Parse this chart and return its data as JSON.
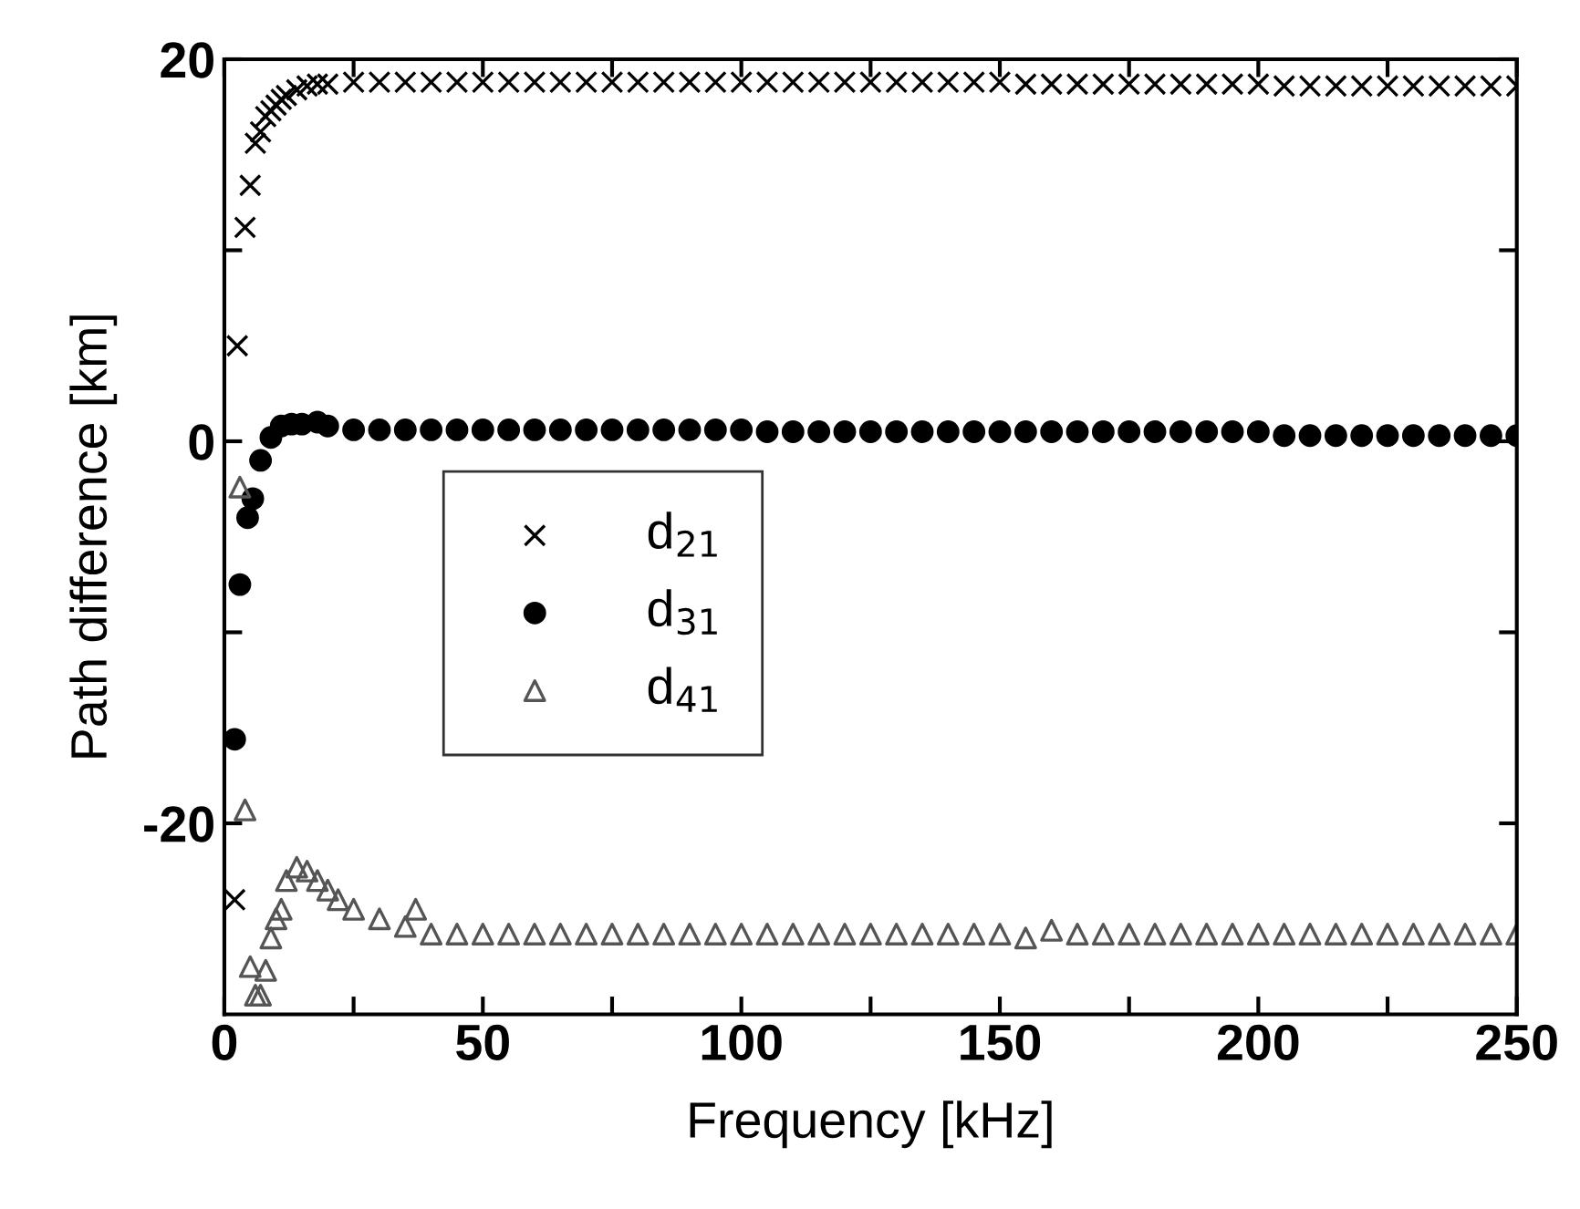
{
  "chart_data": {
    "type": "scatter",
    "xlabel": "Frequency [kHz]",
    "ylabel": "Path difference [km]",
    "xlim": [
      0,
      250
    ],
    "ylim": [
      -30,
      20
    ],
    "xticks": [
      0,
      {
        "value": 25,
        "label": null
      },
      50,
      {
        "value": 75,
        "label": null
      },
      100,
      {
        "value": 125,
        "label": null
      },
      150,
      {
        "value": 175,
        "label": null
      },
      200,
      {
        "value": 225,
        "label": null
      },
      250
    ],
    "yticks": [
      -20,
      {
        "value": -10,
        "label": null
      },
      0,
      {
        "value": 10,
        "label": null
      },
      20
    ],
    "grid": false,
    "legend": "center left",
    "series": [
      {
        "name": "d$_{21}$",
        "color": "#000000",
        "marker": "cross",
        "x": [
          2,
          2.5,
          4,
          5,
          6,
          7,
          8,
          9,
          10,
          11,
          12,
          14,
          16,
          18,
          20,
          25,
          30,
          35,
          40,
          45,
          50,
          55,
          60,
          65,
          70,
          75,
          80,
          85,
          90,
          95,
          100,
          105,
          110,
          115,
          120,
          125,
          130,
          135,
          140,
          145,
          150,
          155,
          160,
          165,
          170,
          175,
          180,
          185,
          190,
          195,
          200,
          205,
          210,
          215,
          220,
          225,
          230,
          235,
          240,
          245,
          250
        ],
        "values": [
          -24,
          5,
          11.2,
          13.4,
          15.6,
          16.2,
          17.0,
          17.3,
          17.6,
          17.9,
          18.1,
          18.4,
          18.6,
          18.7,
          18.7,
          18.8,
          18.8,
          18.8,
          18.8,
          18.8,
          18.8,
          18.8,
          18.8,
          18.8,
          18.8,
          18.8,
          18.8,
          18.8,
          18.8,
          18.8,
          18.8,
          18.8,
          18.8,
          18.8,
          18.8,
          18.8,
          18.8,
          18.8,
          18.8,
          18.8,
          18.8,
          18.7,
          18.7,
          18.7,
          18.7,
          18.7,
          18.7,
          18.7,
          18.7,
          18.7,
          18.7,
          18.6,
          18.6,
          18.6,
          18.6,
          18.6,
          18.6,
          18.6,
          18.6,
          18.6,
          18.6
        ]
      },
      {
        "name": "d$_{31}$",
        "color": "#000000",
        "marker": "circle",
        "x": [
          2,
          3,
          4.5,
          5.5,
          7,
          9,
          11,
          13,
          15,
          18,
          20,
          25,
          30,
          35,
          40,
          45,
          50,
          55,
          60,
          65,
          70,
          75,
          80,
          85,
          90,
          95,
          100,
          105,
          110,
          115,
          120,
          125,
          130,
          135,
          140,
          145,
          150,
          155,
          160,
          165,
          170,
          175,
          180,
          185,
          190,
          195,
          200,
          205,
          210,
          215,
          220,
          225,
          230,
          235,
          240,
          245,
          250
        ],
        "values": [
          -15.6,
          -7.5,
          -4.0,
          -3.0,
          -1.0,
          0.2,
          0.8,
          0.9,
          0.9,
          1.0,
          0.8,
          0.6,
          0.6,
          0.6,
          0.6,
          0.6,
          0.6,
          0.6,
          0.6,
          0.6,
          0.6,
          0.6,
          0.6,
          0.6,
          0.6,
          0.6,
          0.6,
          0.5,
          0.5,
          0.5,
          0.5,
          0.5,
          0.5,
          0.5,
          0.5,
          0.5,
          0.5,
          0.5,
          0.5,
          0.5,
          0.5,
          0.5,
          0.5,
          0.5,
          0.5,
          0.5,
          0.5,
          0.3,
          0.3,
          0.3,
          0.3,
          0.3,
          0.3,
          0.3,
          0.3,
          0.3,
          0.3
        ]
      },
      {
        "name": "d$_{41}$",
        "color": "#555555",
        "marker": "triangle",
        "x": [
          3,
          4,
          5,
          6,
          7,
          8,
          9,
          10,
          11,
          12,
          14,
          16,
          18,
          20,
          22,
          25,
          30,
          35,
          37,
          40,
          45,
          50,
          55,
          60,
          65,
          70,
          75,
          80,
          85,
          90,
          95,
          100,
          105,
          110,
          115,
          120,
          125,
          130,
          135,
          140,
          145,
          150,
          155,
          160,
          165,
          170,
          175,
          180,
          185,
          190,
          195,
          200,
          205,
          210,
          215,
          220,
          225,
          230,
          235,
          240,
          245,
          250
        ],
        "values": [
          -2.4,
          -19.3,
          -27.5,
          -29.0,
          -29.0,
          -27.7,
          -26.0,
          -25.0,
          -24.5,
          -23.0,
          -22.3,
          -22.5,
          -23.0,
          -23.5,
          -24.0,
          -24.5,
          -25.0,
          -25.4,
          -24.5,
          -25.8,
          -25.8,
          -25.8,
          -25.8,
          -25.8,
          -25.8,
          -25.8,
          -25.8,
          -25.8,
          -25.8,
          -25.8,
          -25.8,
          -25.8,
          -25.8,
          -25.8,
          -25.8,
          -25.8,
          -25.8,
          -25.8,
          -25.8,
          -25.8,
          -25.8,
          -25.8,
          -26.0,
          -25.6,
          -25.8,
          -25.8,
          -25.8,
          -25.8,
          -25.8,
          -25.8,
          -25.8,
          -25.8,
          -25.8,
          -25.8,
          -25.8,
          -25.8,
          -25.8,
          -25.8,
          -25.8,
          -25.8,
          -25.8,
          -25.8
        ]
      }
    ]
  }
}
